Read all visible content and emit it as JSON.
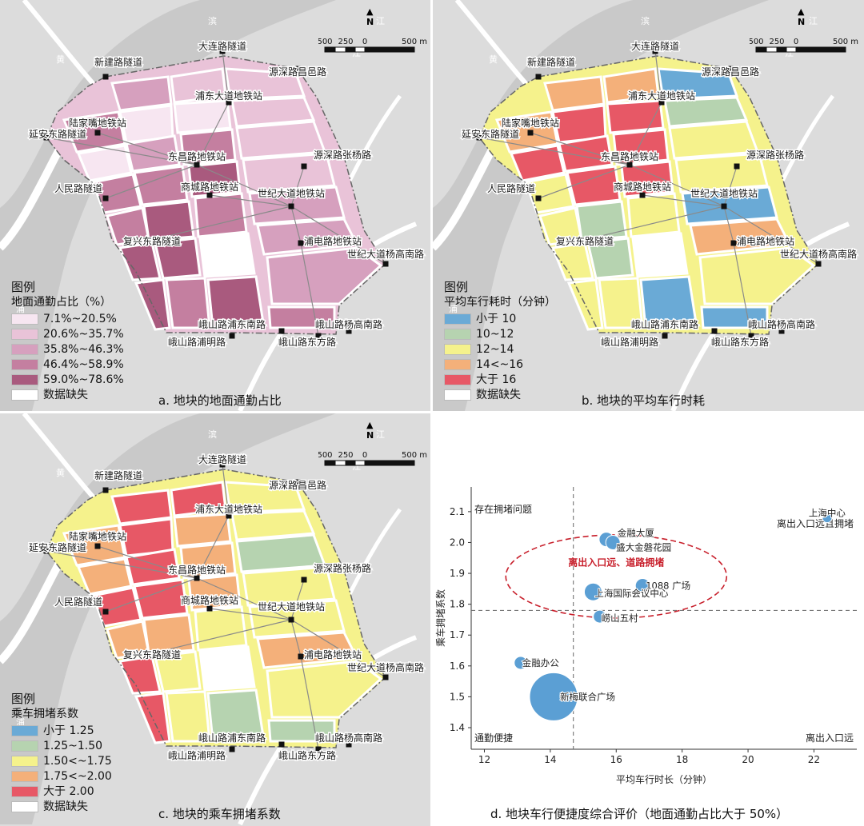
{
  "panels": [
    {
      "id": "a",
      "caption": "a. 地块的地面通勤占比",
      "legend_title": "图例",
      "legend_subtitle": "地面通勤占比（%）",
      "legend_items": [
        {
          "label": "7.1%~20.5%",
          "color": "#f7e6f1"
        },
        {
          "label": "20.6%~35.7%",
          "color": "#e9c3d8"
        },
        {
          "label": "35.8%~46.3%",
          "color": "#d6a0be"
        },
        {
          "label": "46.4%~58.9%",
          "color": "#c47fa0"
        },
        {
          "label": "59.0%~78.6%",
          "color": "#a95a7e"
        },
        {
          "label": "数据缺失",
          "color": "#ffffff"
        }
      ]
    },
    {
      "id": "b",
      "caption": "b. 地块的平均车行时耗",
      "legend_title": "图例",
      "legend_subtitle": "平均车行耗时（分钟）",
      "legend_items": [
        {
          "label": "小于 10",
          "color": "#6aaad6"
        },
        {
          "label": "10~12",
          "color": "#b6d3b0"
        },
        {
          "label": "12~14",
          "color": "#f5f28c"
        },
        {
          "label": "14<~16",
          "color": "#f4b07a"
        },
        {
          "label": "大于 16",
          "color": "#e75866"
        },
        {
          "label": "数据缺失",
          "color": "#ffffff"
        }
      ]
    },
    {
      "id": "c",
      "caption": "c. 地块的乘车拥堵系数",
      "legend_title": "图例",
      "legend_subtitle": "乘车拥堵系数",
      "legend_items": [
        {
          "label": "小于 1.25",
          "color": "#6aaad6"
        },
        {
          "label": "1.25~1.50",
          "color": "#b6d3b0"
        },
        {
          "label": "1.50<~1.75",
          "color": "#f5f28c"
        },
        {
          "label": "1.75<~2.00",
          "color": "#f4b07a"
        },
        {
          "label": "大于 2.00",
          "color": "#e75866"
        },
        {
          "label": "数据缺失",
          "color": "#ffffff"
        }
      ]
    }
  ],
  "scale": {
    "labels": [
      "500",
      "250",
      "0",
      "500 m"
    ]
  },
  "north_label": "N",
  "river_labels": [
    "黄",
    "浦",
    "江",
    "滨",
    "江",
    "浦",
    "东",
    "南",
    "路",
    "杨",
    "高",
    "东",
    "方",
    "路"
  ],
  "stations": [
    "大连路隧道",
    "新建路隧道",
    "源深路昌邑路",
    "浦东大道地铁站",
    "陆家嘴地铁站",
    "延安东路隧道",
    "东昌路地铁站",
    "源深路张杨路",
    "商城路地铁站",
    "人民路隧道",
    "世纪大道地铁站",
    "复兴东路隧道",
    "浦电路地铁站",
    "世纪大道杨高南路",
    "峨山路浦东南路",
    "峨山路杨高南路",
    "峨山路浦明路",
    "峨山路东方路"
  ],
  "chart_caption": "d. 地块车行便捷度综合评价（地面通勤占比大于 50%）",
  "chart_data": {
    "type": "scatter",
    "xlabel": "平均车行时长（分钟）",
    "ylabel": "乘车拥堵系数",
    "xlim": [
      11.6,
      23.3
    ],
    "ylim": [
      1.33,
      2.18
    ],
    "xticks": [
      12,
      14,
      16,
      18,
      20,
      22
    ],
    "yticks": [
      1.4,
      1.5,
      1.6,
      1.7,
      1.8,
      1.9,
      2.0,
      2.1
    ],
    "reference_lines": {
      "x": 14.7,
      "y": 1.78
    },
    "points": [
      {
        "label": "上海中心",
        "x": 22.4,
        "y": 2.08,
        "size": 6
      },
      {
        "label": "金融大厦",
        "x": 15.7,
        "y": 2.01,
        "size": 9
      },
      {
        "label": "盛大金磐花园",
        "x": 15.9,
        "y": 2.0,
        "size": 9
      },
      {
        "label": "1088 广场",
        "x": 16.8,
        "y": 1.86,
        "size": 9
      },
      {
        "label": "上海国际会议中心",
        "x": 15.3,
        "y": 1.84,
        "size": 11
      },
      {
        "label": "崂山五村",
        "x": 15.5,
        "y": 1.76,
        "size": 8
      },
      {
        "label": "金融办公",
        "x": 13.1,
        "y": 1.61,
        "size": 8
      },
      {
        "label": "新梅联合广场",
        "x": 14.1,
        "y": 1.5,
        "size": 30
      }
    ],
    "quadrant_labels": {
      "top_left": "存在拥堵问题",
      "top_right": "离出入口远且拥堵",
      "bottom_left": "通勤便捷",
      "bottom_right": "离出入口远"
    },
    "ellipse_label": "离出入口远、道路拥堵"
  }
}
